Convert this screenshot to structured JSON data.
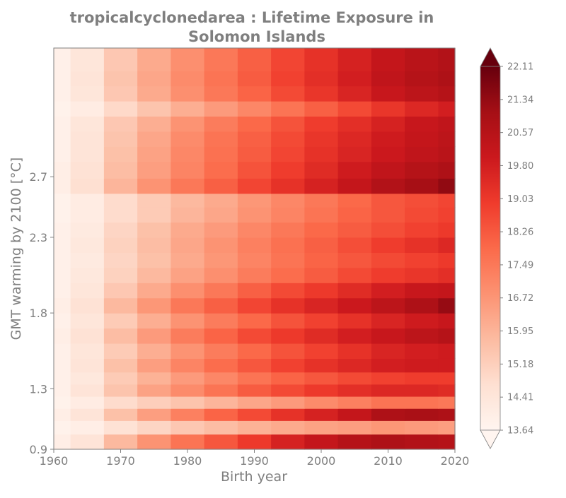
{
  "chart_data": {
    "type": "heatmap",
    "title_line1": "tropicalcyclonedarea : Lifetime Exposure in",
    "title_line2": "Solomon Islands",
    "xlabel": "Birth year",
    "ylabel": "GMT warming by 2100 [°C]",
    "xlim": [
      1960,
      2020
    ],
    "ylim": [
      0.9,
      3.55
    ],
    "x_ticks": [
      1960,
      1970,
      1980,
      1990,
      2000,
      2010,
      2020
    ],
    "y_ticks": [
      "0.9",
      "1.3",
      "1.8",
      "2.3",
      "2.7"
    ],
    "y_tick_values": [
      0.9,
      1.3,
      1.8,
      2.3,
      2.7
    ],
    "colorbar": {
      "min": 13.64,
      "max": 22.11,
      "colormap": "Reds",
      "extend": "both",
      "ticks": [
        "13.64",
        "14.41",
        "15.18",
        "15.95",
        "16.72",
        "17.49",
        "18.26",
        "19.03",
        "19.80",
        "20.57",
        "21.34",
        "22.11"
      ],
      "tick_values": [
        13.64,
        14.41,
        15.18,
        15.95,
        16.72,
        17.49,
        18.26,
        19.03,
        19.8,
        20.57,
        21.34,
        22.11
      ],
      "colors": [
        "#fff5f0",
        "#fee0d2",
        "#fcbba1",
        "#fc9272",
        "#fb6a4a",
        "#ef3b2c",
        "#cb181d",
        "#a50f15",
        "#67000d"
      ]
    },
    "x": [
      1960,
      1965,
      1970,
      1975,
      1980,
      1985,
      1990,
      1995,
      2000,
      2005,
      2010,
      2015,
      2020
    ],
    "y": [
      0.95,
      1.05,
      1.13,
      1.21,
      1.29,
      1.37,
      1.45,
      1.55,
      1.65,
      1.75,
      1.85,
      1.95,
      2.05,
      2.15,
      2.25,
      2.35,
      2.45,
      2.55,
      2.63,
      2.75,
      2.85,
      2.95,
      3.05,
      3.15,
      3.25,
      3.35,
      3.45
    ],
    "values": [
      [
        14.0,
        14.5,
        15.8,
        16.8,
        17.6,
        18.3,
        19.0,
        19.7,
        20.2,
        20.6,
        20.8,
        20.7,
        20.6
      ],
      [
        13.8,
        14.0,
        14.6,
        15.0,
        15.4,
        15.7,
        16.0,
        16.2,
        16.4,
        16.5,
        16.7,
        16.6,
        16.5
      ],
      [
        14.0,
        14.5,
        15.6,
        16.5,
        17.3,
        18.0,
        18.6,
        19.2,
        19.7,
        20.2,
        20.8,
        20.9,
        20.8
      ],
      [
        13.8,
        14.1,
        14.8,
        15.2,
        15.5,
        15.9,
        16.3,
        16.6,
        17.0,
        17.3,
        17.6,
        17.6,
        17.5
      ],
      [
        13.9,
        14.5,
        15.5,
        16.4,
        17.0,
        17.6,
        18.2,
        18.6,
        19.0,
        19.3,
        19.5,
        19.5,
        19.4
      ],
      [
        13.9,
        14.3,
        15.3,
        16.0,
        16.6,
        17.1,
        17.6,
        18.0,
        18.3,
        18.6,
        18.8,
        18.9,
        18.9
      ],
      [
        13.9,
        14.5,
        15.6,
        16.5,
        17.2,
        17.8,
        18.3,
        18.8,
        19.2,
        19.5,
        19.8,
        19.9,
        19.9
      ],
      [
        13.9,
        14.4,
        15.3,
        16.1,
        16.8,
        17.4,
        17.9,
        18.4,
        18.8,
        19.2,
        19.6,
        19.8,
        19.9
      ],
      [
        14.0,
        14.6,
        15.7,
        16.6,
        17.4,
        18.0,
        18.6,
        19.0,
        19.4,
        19.8,
        20.1,
        20.4,
        20.6
      ],
      [
        13.9,
        14.4,
        15.3,
        16.1,
        16.8,
        17.4,
        17.9,
        18.4,
        18.8,
        19.2,
        19.6,
        19.9,
        20.1
      ],
      [
        14.0,
        14.6,
        15.8,
        16.7,
        17.5,
        18.1,
        18.7,
        19.2,
        19.6,
        20.0,
        20.4,
        20.8,
        21.3
      ],
      [
        13.9,
        14.4,
        15.4,
        16.2,
        16.9,
        17.5,
        18.1,
        18.6,
        19.0,
        19.4,
        19.8,
        20.1,
        20.2
      ],
      [
        13.9,
        14.3,
        15.1,
        15.8,
        16.4,
        16.9,
        17.4,
        17.8,
        18.2,
        18.6,
        18.9,
        19.1,
        19.3
      ],
      [
        13.9,
        14.2,
        15.0,
        15.6,
        16.2,
        16.7,
        17.2,
        17.6,
        18.0,
        18.3,
        18.6,
        18.8,
        19.0
      ],
      [
        13.9,
        14.3,
        15.1,
        15.7,
        16.3,
        16.8,
        17.3,
        17.7,
        18.1,
        18.5,
        18.9,
        19.2,
        19.5
      ],
      [
        13.9,
        14.2,
        15.0,
        15.6,
        16.2,
        16.6,
        17.1,
        17.5,
        17.9,
        18.2,
        18.5,
        18.8,
        19.0
      ],
      [
        13.8,
        14.1,
        14.8,
        15.3,
        15.9,
        16.3,
        16.8,
        17.2,
        17.6,
        18.0,
        18.3,
        18.6,
        18.8
      ],
      [
        13.8,
        14.1,
        14.8,
        15.3,
        15.8,
        16.2,
        16.7,
        17.1,
        17.5,
        17.9,
        18.3,
        18.5,
        18.7
      ],
      [
        14.0,
        14.7,
        15.9,
        16.8,
        17.5,
        18.1,
        18.7,
        19.2,
        19.7,
        20.2,
        20.7,
        21.0,
        21.4
      ],
      [
        14.0,
        14.6,
        15.7,
        16.5,
        17.2,
        17.8,
        18.4,
        18.9,
        19.4,
        19.9,
        20.3,
        20.6,
        20.8
      ],
      [
        13.9,
        14.5,
        15.6,
        16.4,
        17.1,
        17.7,
        18.2,
        18.7,
        19.2,
        19.6,
        20.0,
        20.3,
        20.5
      ],
      [
        13.9,
        14.5,
        15.5,
        16.3,
        17.0,
        17.6,
        18.1,
        18.6,
        19.1,
        19.5,
        19.9,
        20.2,
        20.4
      ],
      [
        13.9,
        14.4,
        15.4,
        16.1,
        16.8,
        17.4,
        17.9,
        18.4,
        18.9,
        19.3,
        19.7,
        20.1,
        20.3
      ],
      [
        13.8,
        14.1,
        14.9,
        15.5,
        16.1,
        16.6,
        17.1,
        17.6,
        18.1,
        18.6,
        19.1,
        19.5,
        19.8
      ],
      [
        13.9,
        14.4,
        15.4,
        16.2,
        16.9,
        17.5,
        18.0,
        18.6,
        19.1,
        19.6,
        20.1,
        20.4,
        20.6
      ],
      [
        13.9,
        14.5,
        15.5,
        16.3,
        17.0,
        17.6,
        18.2,
        18.8,
        19.3,
        19.8,
        20.3,
        20.6,
        20.8
      ],
      [
        13.9,
        14.4,
        15.4,
        16.2,
        16.9,
        17.5,
        18.1,
        18.7,
        19.2,
        19.7,
        20.2,
        20.5,
        20.7
      ]
    ]
  }
}
